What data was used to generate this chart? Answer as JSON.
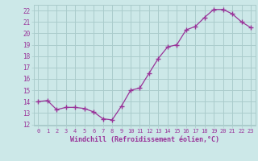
{
  "x": [
    0,
    1,
    2,
    3,
    4,
    5,
    6,
    7,
    8,
    9,
    10,
    11,
    12,
    13,
    14,
    15,
    16,
    17,
    18,
    19,
    20,
    21,
    22,
    23
  ],
  "y": [
    14.0,
    14.1,
    13.3,
    13.5,
    13.5,
    13.4,
    13.1,
    12.5,
    12.4,
    13.6,
    15.0,
    15.2,
    16.5,
    17.8,
    18.8,
    19.0,
    20.3,
    20.6,
    21.4,
    22.1,
    22.1,
    21.7,
    21.0,
    20.5
  ],
  "hours_labels": [
    "0",
    "1",
    "2",
    "3",
    "4",
    "5",
    "6",
    "7",
    "8",
    "9",
    "10",
    "11",
    "12",
    "13",
    "14",
    "15",
    "16",
    "17",
    "18",
    "19",
    "20",
    "21",
    "22",
    "23"
  ],
  "ylabel_ticks": [
    12,
    13,
    14,
    15,
    16,
    17,
    18,
    19,
    20,
    21,
    22
  ],
  "xlabel": "Windchill (Refroidissement éolien,°C)",
  "line_color": "#993399",
  "marker_color": "#993399",
  "bg_color": "#cce8e8",
  "grid_color": "#aacccc",
  "tick_label_color": "#993399",
  "axis_label_color": "#993399",
  "ylim": [
    11.9,
    22.5
  ],
  "xlim": [
    -0.5,
    23.5
  ]
}
